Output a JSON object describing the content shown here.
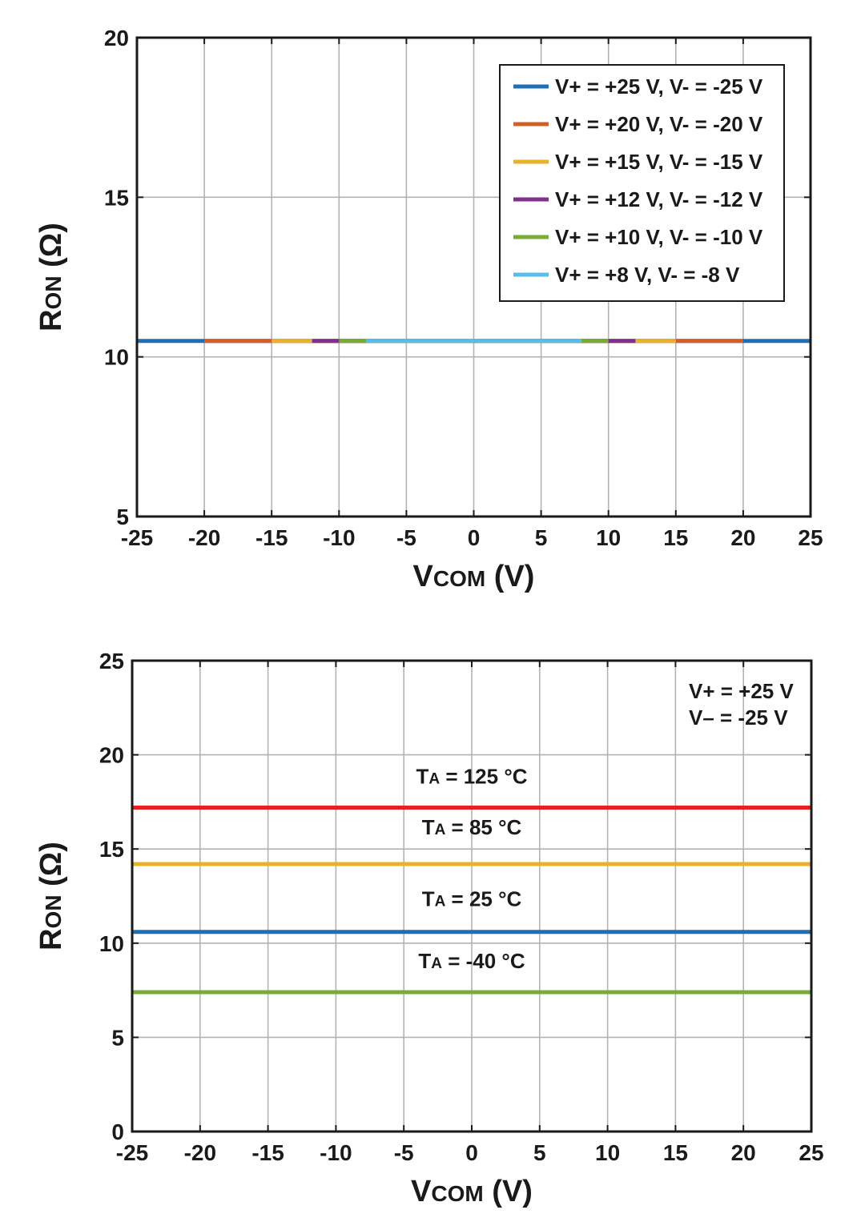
{
  "chart_data": [
    {
      "type": "line",
      "xlabel": {
        "main": "V",
        "sub": "COM",
        "unit": " (V)"
      },
      "ylabel": {
        "main": "R",
        "sub": "ON",
        "unit": " (Ω)"
      },
      "xlim": [
        -25,
        25
      ],
      "ylim": [
        5,
        20
      ],
      "xticks": [
        -25,
        -20,
        -15,
        -10,
        -5,
        0,
        5,
        10,
        15,
        20,
        25
      ],
      "yticks": [
        5,
        10,
        15,
        20
      ],
      "grid": true,
      "legend_position": "top-right",
      "series": [
        {
          "name": "V+ = +25 V, V- = -25 V",
          "color": "#1F6FB4",
          "x": [
            -25,
            25
          ],
          "y": [
            10.5,
            10.5
          ]
        },
        {
          "name": "V+ = +20 V, V- = -20 V",
          "color": "#D35F25",
          "x": [
            -20,
            20
          ],
          "y": [
            10.5,
            10.5
          ]
        },
        {
          "name": "V+ = +15 V, V- = -15 V",
          "color": "#EBB02C",
          "x": [
            -15,
            15
          ],
          "y": [
            10.5,
            10.5
          ]
        },
        {
          "name": "V+ = +12 V, V- = -12 V",
          "color": "#7F2F8E",
          "x": [
            -12,
            12
          ],
          "y": [
            10.5,
            10.5
          ]
        },
        {
          "name": "V+ = +10 V, V- = -10 V",
          "color": "#78AB38",
          "x": [
            -10,
            10
          ],
          "y": [
            10.5,
            10.5
          ]
        },
        {
          "name": "V+ = +8 V, V- = -8 V",
          "color": "#58BDE9",
          "x": [
            -8,
            8
          ],
          "y": [
            10.5,
            10.5
          ]
        }
      ]
    },
    {
      "type": "line",
      "xlabel": {
        "main": "V",
        "sub": "COM",
        "unit": " (V)"
      },
      "ylabel": {
        "main": "R",
        "sub": "ON",
        "unit": " (Ω)"
      },
      "xlim": [
        -25,
        25
      ],
      "ylim": [
        0,
        25
      ],
      "xticks": [
        -25,
        -20,
        -15,
        -10,
        -5,
        0,
        5,
        10,
        15,
        20,
        25
      ],
      "yticks": [
        0,
        5,
        10,
        15,
        20,
        25
      ],
      "grid": true,
      "annotation": [
        "V+ = +25 V",
        "V– = -25 V"
      ],
      "series": [
        {
          "name": "TA = 125 °C",
          "label_main": "T",
          "label_sub": "A",
          "label_rest": " = 125 °C",
          "color": "#E8201F",
          "x": [
            -25,
            25
          ],
          "y": [
            17.2,
            17.2
          ],
          "label_y": 18.9
        },
        {
          "name": "TA = 85 °C",
          "label_main": "T",
          "label_sub": "A",
          "label_rest": " = 85 °C",
          "color": "#EBB02C",
          "x": [
            -25,
            25
          ],
          "y": [
            14.2,
            14.2
          ],
          "label_y": 16.2
        },
        {
          "name": "TA = 25 °C",
          "label_main": "T",
          "label_sub": "A",
          "label_rest": " = 25 °C",
          "color": "#1F6FB4",
          "x": [
            -25,
            25
          ],
          "y": [
            10.6,
            10.6
          ],
          "label_y": 12.4
        },
        {
          "name": "TA = -40 °C",
          "label_main": "T",
          "label_sub": "A",
          "label_rest": " = -40 °C",
          "color": "#78AB38",
          "x": [
            -25,
            25
          ],
          "y": [
            7.4,
            7.4
          ],
          "label_y": 9.1
        }
      ]
    }
  ]
}
